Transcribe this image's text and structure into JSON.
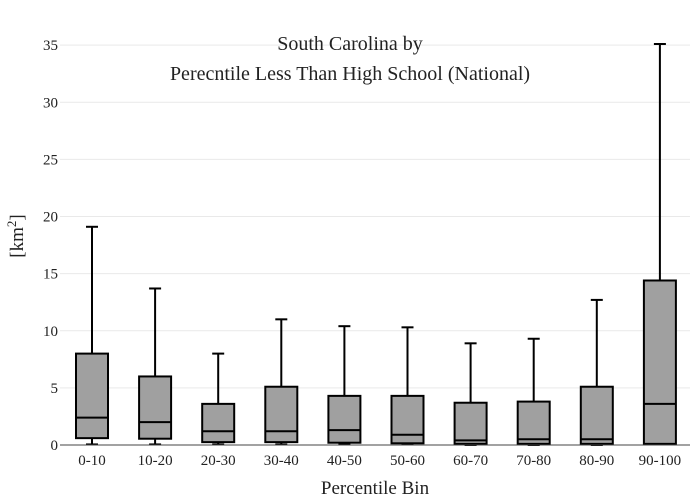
{
  "chart_data": {
    "type": "box",
    "title_lines": [
      "South Carolina  by",
      "Perecntile Less Than High School (National)"
    ],
    "xlabel": "Percentile Bin",
    "ylabel": "[km",
    "ylabel_superscript": "2",
    "ylabel_suffix": "]",
    "ylim": [
      0,
      36.5
    ],
    "yticks": [
      0,
      5,
      10,
      15,
      20,
      25,
      30,
      35
    ],
    "grid": true,
    "box_color": "#a0a0a0",
    "categories": [
      "0-10",
      "10-20",
      "20-30",
      "30-40",
      "40-50",
      "50-60",
      "60-70",
      "70-80",
      "80-90",
      "90-100"
    ],
    "boxes": [
      {
        "min": 0.05,
        "q1": 0.6,
        "median": 2.4,
        "q3": 8.0,
        "max": 19.1
      },
      {
        "min": 0.05,
        "q1": 0.55,
        "median": 2.0,
        "q3": 6.0,
        "max": 13.7
      },
      {
        "min": 0.05,
        "q1": 0.25,
        "median": 1.2,
        "q3": 3.6,
        "max": 8.0
      },
      {
        "min": 0.05,
        "q1": 0.25,
        "median": 1.2,
        "q3": 5.1,
        "max": 11.0
      },
      {
        "min": 0.05,
        "q1": 0.2,
        "median": 1.3,
        "q3": 4.3,
        "max": 10.4
      },
      {
        "min": 0.05,
        "q1": 0.15,
        "median": 0.9,
        "q3": 4.3,
        "max": 10.3
      },
      {
        "min": 0.0,
        "q1": 0.1,
        "median": 0.4,
        "q3": 3.7,
        "max": 8.9
      },
      {
        "min": 0.0,
        "q1": 0.1,
        "median": 0.5,
        "q3": 3.8,
        "max": 9.3
      },
      {
        "min": 0.0,
        "q1": 0.1,
        "median": 0.5,
        "q3": 5.1,
        "max": 12.7
      },
      {
        "min": 0.05,
        "q1": 0.1,
        "median": 3.6,
        "q3": 14.4,
        "max": 35.1
      }
    ]
  }
}
